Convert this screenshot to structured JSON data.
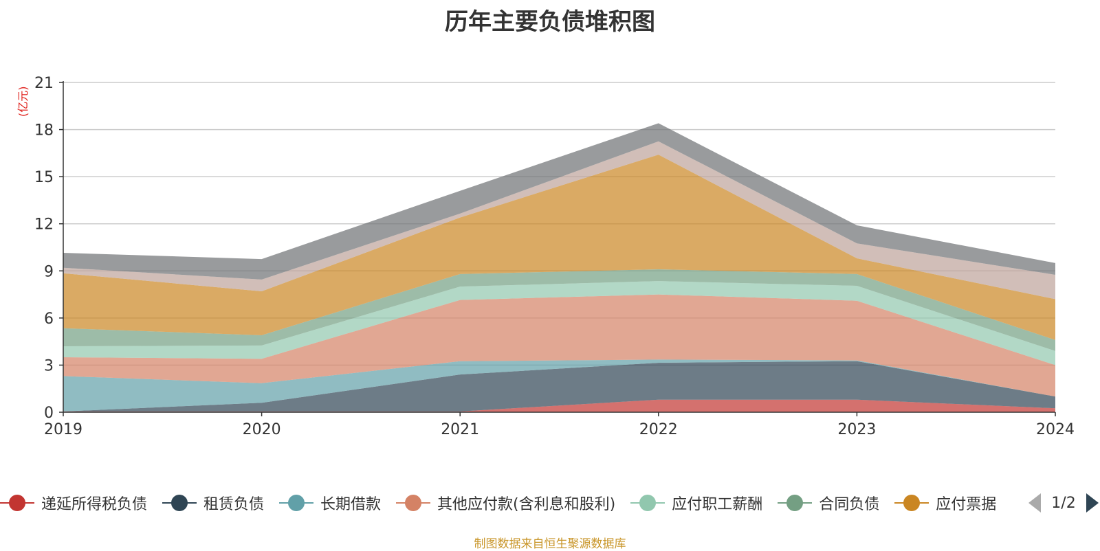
{
  "chart_data": {
    "type": "area",
    "stacked": true,
    "title": "历年主要负债堆积图",
    "ylabel": "(亿元)",
    "xlabel": "",
    "x": [
      "2019",
      "2020",
      "2021",
      "2022",
      "2023",
      "2024"
    ],
    "ylim": [
      0,
      21
    ],
    "yticks": [
      0,
      3,
      6,
      9,
      12,
      15,
      18,
      21
    ],
    "grid": true,
    "series": [
      {
        "name": "递延所得税负债",
        "color": "#c23531",
        "values": [
          0.05,
          0.05,
          0.05,
          0.8,
          0.8,
          0.25
        ]
      },
      {
        "name": "租赁负债",
        "color": "#2f4554",
        "values": [
          0.0,
          0.55,
          2.35,
          2.35,
          2.45,
          0.75
        ]
      },
      {
        "name": "长期借款",
        "color": "#61a0a8",
        "values": [
          2.25,
          1.25,
          0.85,
          0.2,
          0.05,
          0.0
        ]
      },
      {
        "name": "其他应付款(含利息和股利)",
        "color": "#d48265",
        "values": [
          1.2,
          1.55,
          3.9,
          4.15,
          3.8,
          2.0
        ]
      },
      {
        "name": "应付职工薪酬",
        "color": "#91c7ae",
        "values": [
          0.7,
          0.85,
          0.85,
          0.85,
          0.95,
          0.9
        ]
      },
      {
        "name": "合同负债",
        "color": "#749f83",
        "values": [
          1.15,
          0.65,
          0.8,
          0.75,
          0.75,
          0.7
        ]
      },
      {
        "name": "应付票据",
        "color": "#ca8622",
        "values": [
          3.5,
          2.8,
          3.6,
          7.3,
          1.0,
          2.6
        ]
      },
      {
        "name": "",
        "color": "#bda29a",
        "values": [
          0.35,
          0.75,
          0.25,
          0.85,
          0.95,
          1.55
        ]
      },
      {
        "name": "",
        "color": "#6e7074",
        "values": [
          0.95,
          1.3,
          1.45,
          1.15,
          1.15,
          0.75
        ]
      }
    ],
    "legend": {
      "position": "bottom",
      "page_label": "1/2"
    }
  },
  "colors": {
    "axis": "#333333",
    "grid": "#cccccc",
    "unit_label": "#e0201b",
    "source": "#c9962a",
    "pager_prev": "#aaaaaa",
    "pager_next": "#2f4554"
  },
  "footer": {
    "source": "制图数据来自恒生聚源数据库"
  }
}
